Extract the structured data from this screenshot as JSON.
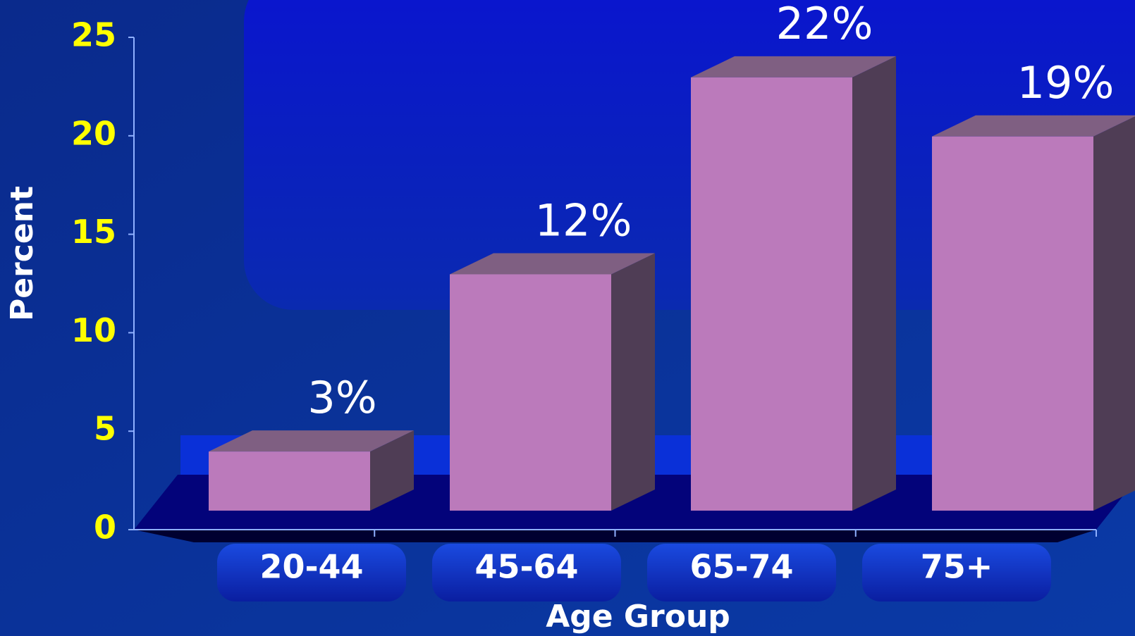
{
  "chart_data": {
    "type": "bar",
    "x_label": "Age Group",
    "y_label": "Percent",
    "categories": [
      "20-44",
      "45-64",
      "65-74",
      "75+"
    ],
    "values": [
      3,
      12,
      22,
      19
    ],
    "value_labels": [
      "3%",
      "12%",
      "22%",
      "19%"
    ],
    "color": "#bb7abb",
    "ylim": [
      0,
      25
    ],
    "yticks": [
      0,
      5,
      10,
      15,
      20,
      25
    ]
  }
}
